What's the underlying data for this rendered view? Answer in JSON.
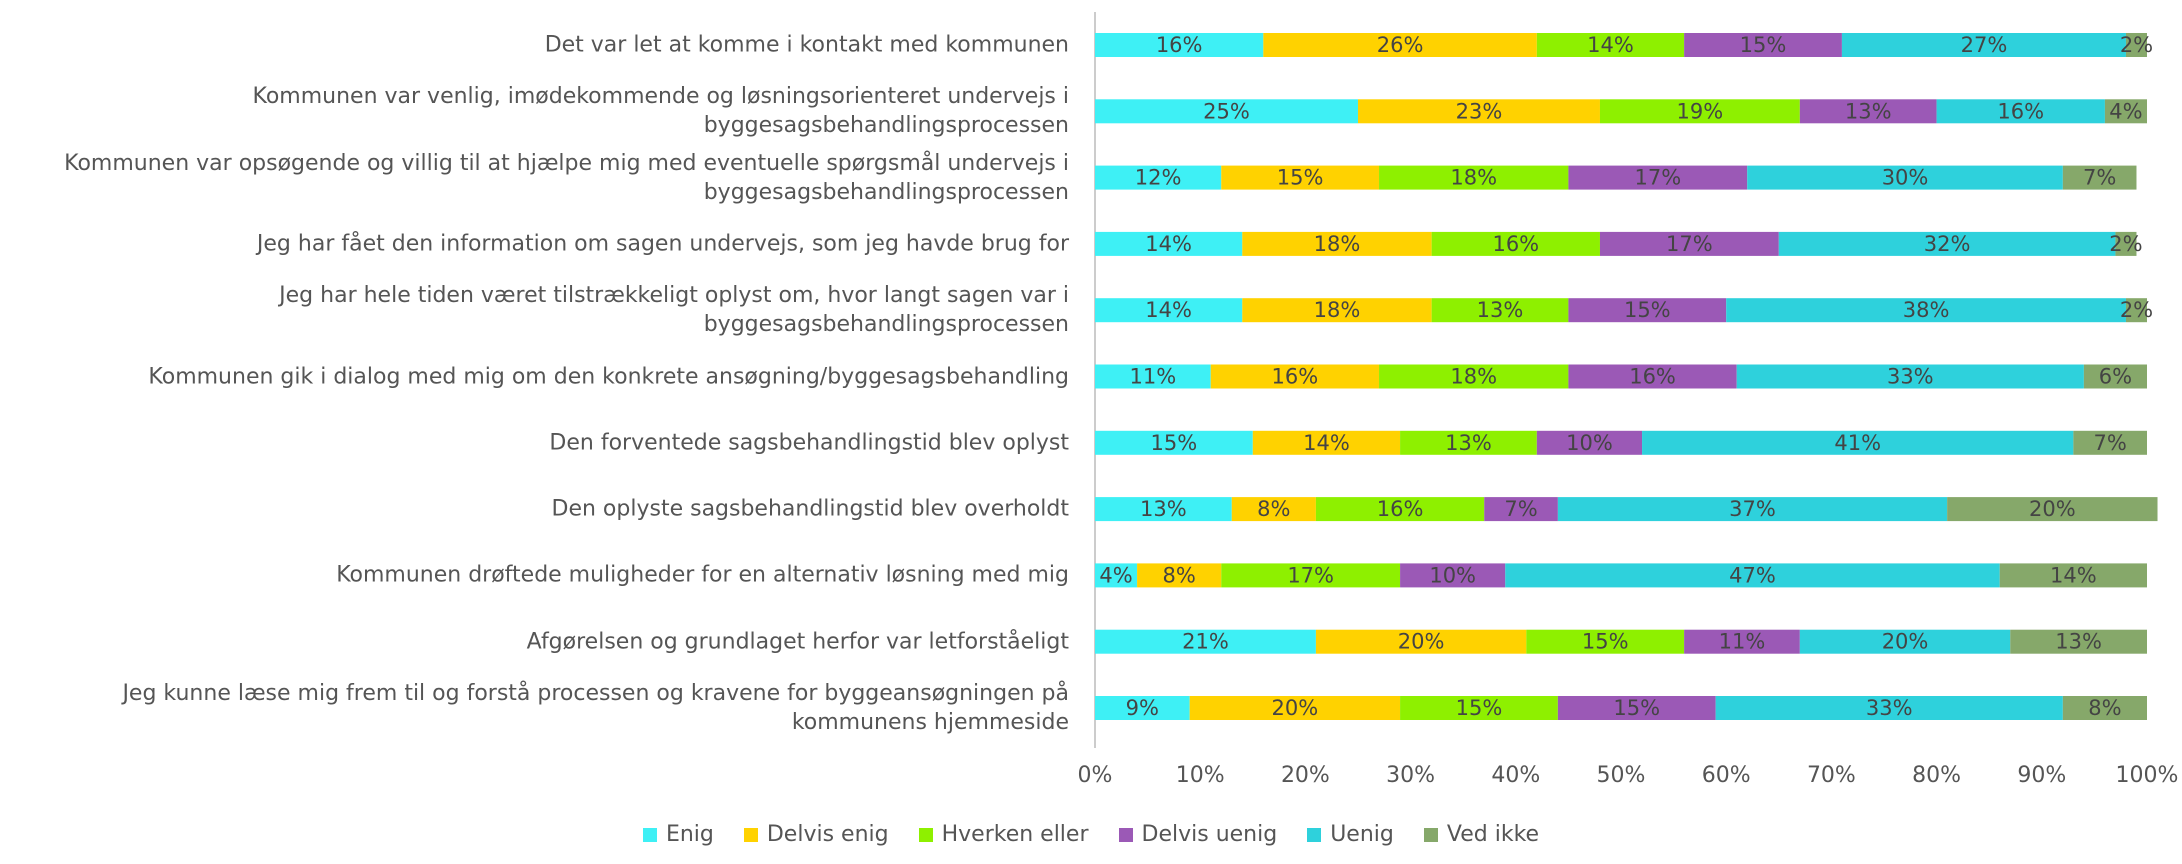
{
  "chart_data": {
    "type": "stacked-bar-horizontal",
    "categories": [
      "Det var let at komme i kontakt med kommunen",
      "Kommunen var venlig, imødekommende og løsningsorienteret undervejs i byggesagsbehandlingsprocessen",
      "Kommunen var opsøgende og villig til at hjælpe mig med eventuelle spørgsmål undervejs i byggesagsbehandlingsprocessen",
      "Jeg har fået den information om sagen undervejs, som jeg havde brug for",
      "Jeg har hele tiden været tilstrækkeligt oplyst om, hvor langt sagen var i byggesagsbehandlingsprocessen",
      "Kommunen gik i dialog med mig om den konkrete ansøgning/byggesagsbehandling",
      "Den forventede sagsbehandlingstid blev oplyst",
      "Den oplyste sagsbehandlingstid blev overholdt",
      "Kommunen drøftede muligheder for en alternativ løsning med mig",
      "Afgørelsen og grundlaget herfor var letforståeligt",
      "Jeg kunne læse mig frem til og forstå processen og kravene for byggeansøgningen på kommunens hjemmeside"
    ],
    "series": [
      {
        "name": "Enig",
        "color": "#3ef0f5",
        "values": [
          16,
          25,
          12,
          14,
          14,
          11,
          15,
          13,
          4,
          21,
          9
        ],
        "value_labels": [
          "16%",
          "25%",
          "12%",
          "14%",
          "14%",
          "11%",
          "15%",
          "13%",
          "4%",
          "21%",
          "9%"
        ]
      },
      {
        "name": "Delvis enig",
        "color": "#ffd200",
        "values": [
          26,
          23,
          15,
          18,
          18,
          16,
          14,
          8,
          8,
          20,
          20
        ],
        "value_labels": [
          "26%",
          "23%",
          "15%",
          "18%",
          "18%",
          "16%",
          "14%",
          "8%",
          "8%",
          "20%",
          "20%"
        ]
      },
      {
        "name": "Hverken eller",
        "color": "#8ef000",
        "values": [
          14,
          19,
          18,
          16,
          13,
          18,
          13,
          16,
          17,
          15,
          15
        ],
        "value_labels": [
          "14%",
          "19%",
          "18%",
          "16%",
          "13%",
          "18%",
          "13%",
          "16%",
          "17%",
          "15%",
          "15%"
        ]
      },
      {
        "name": "Delvis uenig",
        "color": "#9b59b6",
        "values": [
          15,
          13,
          17,
          17,
          15,
          16,
          10,
          7,
          10,
          11,
          15
        ],
        "value_labels": [
          "15%",
          "13%",
          "17%",
          "17%",
          "15%",
          "16%",
          "10%",
          "7%",
          "10%",
          "11%",
          "15%"
        ]
      },
      {
        "name": "Uenig",
        "color": "#2ed1dc",
        "values": [
          27,
          16,
          30,
          32,
          38,
          33,
          41,
          37,
          47,
          20,
          33
        ],
        "value_labels": [
          "27%",
          "16%",
          "30%",
          "32%",
          "38%",
          "33%",
          "41%",
          "37%",
          "47%",
          "20%",
          "33%"
        ]
      },
      {
        "name": "Ved ikke",
        "color": "#86a86a",
        "values": [
          2,
          4,
          7,
          2,
          2,
          6,
          7,
          20,
          14,
          13,
          8
        ],
        "value_labels": [
          "2%",
          "4%",
          "7%",
          "2%",
          "2%",
          "6%",
          "7%",
          "20%",
          "14%",
          "13%",
          "8%"
        ]
      }
    ],
    "xlim": [
      0,
      100
    ],
    "xticks": [
      {
        "value": 0,
        "label": "0%"
      },
      {
        "value": 10,
        "label": "10%"
      },
      {
        "value": 20,
        "label": "20%"
      },
      {
        "value": 30,
        "label": "30%"
      },
      {
        "value": 40,
        "label": "40%"
      },
      {
        "value": 50,
        "label": "50%"
      },
      {
        "value": 60,
        "label": "60%"
      },
      {
        "value": 70,
        "label": "70%"
      },
      {
        "value": 80,
        "label": "80%"
      },
      {
        "value": 90,
        "label": "90%"
      },
      {
        "value": 100,
        "label": "100%"
      }
    ],
    "legend": "bottom"
  }
}
